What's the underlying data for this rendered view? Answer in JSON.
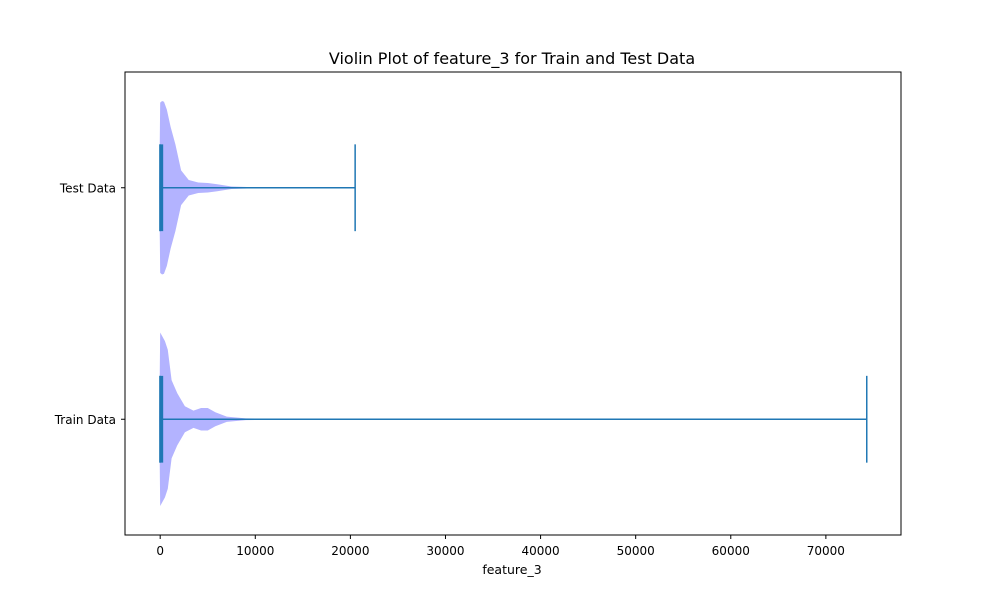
{
  "chart_data": {
    "type": "violin",
    "orientation": "horizontal",
    "title": "Violin Plot of feature_3 for Train and Test Data",
    "xlabel": "feature_3",
    "ylabel": "",
    "xlim": [
      -3700,
      77900
    ],
    "xticks": [
      0,
      10000,
      20000,
      30000,
      40000,
      50000,
      60000,
      70000
    ],
    "xtick_labels": [
      "0",
      "10000",
      "20000",
      "30000",
      "40000",
      "50000",
      "60000",
      "70000"
    ],
    "categories": [
      "Train Data",
      "Test Data"
    ],
    "grid": false,
    "colors": {
      "violin_fill": "#b3b3ff",
      "lines": "#1f77b4",
      "axes": "#000000"
    },
    "series": [
      {
        "category": "Train Data",
        "min": 0,
        "max": 74300,
        "q1": 0,
        "q3": 200,
        "density": [
          [
            -100,
            0.0
          ],
          [
            0,
            1.0
          ],
          [
            500,
            0.9
          ],
          [
            800,
            0.8
          ],
          [
            1200,
            0.45
          ],
          [
            1800,
            0.3
          ],
          [
            2600,
            0.15
          ],
          [
            3500,
            0.1
          ],
          [
            4300,
            0.13
          ],
          [
            5000,
            0.13
          ],
          [
            5800,
            0.08
          ],
          [
            7000,
            0.03
          ],
          [
            9000,
            0.01
          ],
          [
            13000,
            0.005
          ],
          [
            17000,
            0.0
          ]
        ]
      },
      {
        "category": "Test Data",
        "min": 0,
        "max": 20500,
        "q1": 0,
        "q3": 200,
        "density": [
          [
            -100,
            0.0
          ],
          [
            0,
            0.98
          ],
          [
            200,
            1.0
          ],
          [
            400,
            0.99
          ],
          [
            700,
            0.9
          ],
          [
            1100,
            0.7
          ],
          [
            1600,
            0.5
          ],
          [
            2200,
            0.2
          ],
          [
            3000,
            0.09
          ],
          [
            4000,
            0.06
          ],
          [
            5000,
            0.055
          ],
          [
            6000,
            0.04
          ],
          [
            7500,
            0.015
          ],
          [
            10000,
            0.006
          ],
          [
            16000,
            0.0
          ]
        ]
      }
    ]
  }
}
